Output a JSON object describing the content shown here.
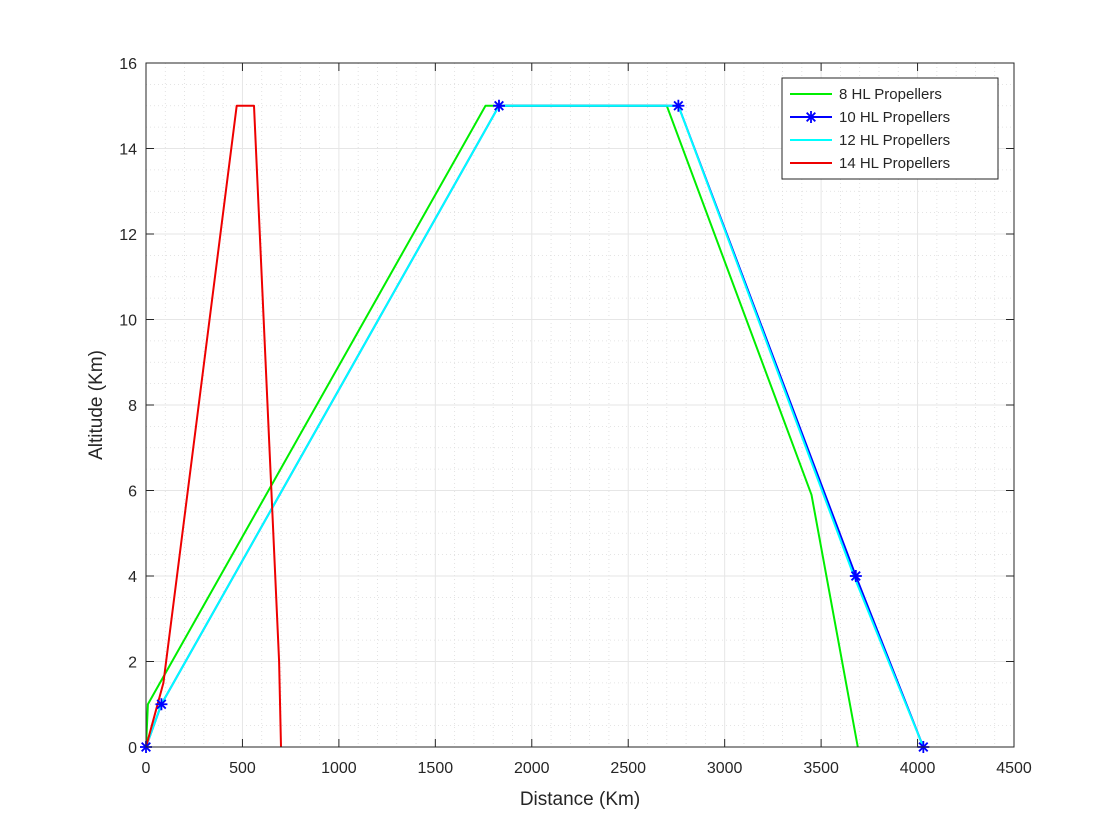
{
  "chart_data": {
    "type": "line",
    "xlabel": "Distance (Km)",
    "ylabel": "Altitude (Km)",
    "xlim": [
      0,
      4500
    ],
    "ylim": [
      0,
      16
    ],
    "xticks": [
      0,
      500,
      1000,
      1500,
      2000,
      2500,
      3000,
      3500,
      4000,
      4500
    ],
    "yticks": [
      0,
      2,
      4,
      6,
      8,
      10,
      12,
      14,
      16
    ],
    "grid": "on (major and minor)",
    "legend_position": "top-right",
    "series": [
      {
        "name": "8 HL Propellers",
        "color": "#00ee00",
        "marker": "none",
        "points": [
          [
            0,
            0
          ],
          [
            10,
            1
          ],
          [
            1760,
            15
          ],
          [
            2700,
            15
          ],
          [
            3450,
            5.9
          ],
          [
            3690,
            0
          ]
        ]
      },
      {
        "name": "10 HL Propellers",
        "color": "#0000ff",
        "marker": "asterisk",
        "markers_at": [
          [
            0,
            0
          ],
          [
            80,
            1
          ],
          [
            1830,
            15
          ],
          [
            2760,
            15
          ],
          [
            3680,
            4
          ],
          [
            4030,
            0
          ]
        ],
        "points": [
          [
            0,
            0
          ],
          [
            80,
            1
          ],
          [
            1830,
            15
          ],
          [
            2760,
            15
          ],
          [
            3680,
            4
          ],
          [
            4030,
            0
          ]
        ]
      },
      {
        "name": "12 HL Propellers",
        "color": "#00ffff",
        "marker": "none",
        "points": [
          [
            0,
            0
          ],
          [
            80,
            1
          ],
          [
            1830,
            15
          ],
          [
            2760,
            15
          ],
          [
            3670,
            4
          ],
          [
            4030,
            0
          ]
        ]
      },
      {
        "name": "14 HL Propellers",
        "color": "#ee0000",
        "marker": "none",
        "points": [
          [
            0,
            0
          ],
          [
            90,
            1.5
          ],
          [
            470,
            15
          ],
          [
            560,
            15
          ],
          [
            690,
            2
          ],
          [
            700,
            0
          ]
        ]
      }
    ]
  }
}
